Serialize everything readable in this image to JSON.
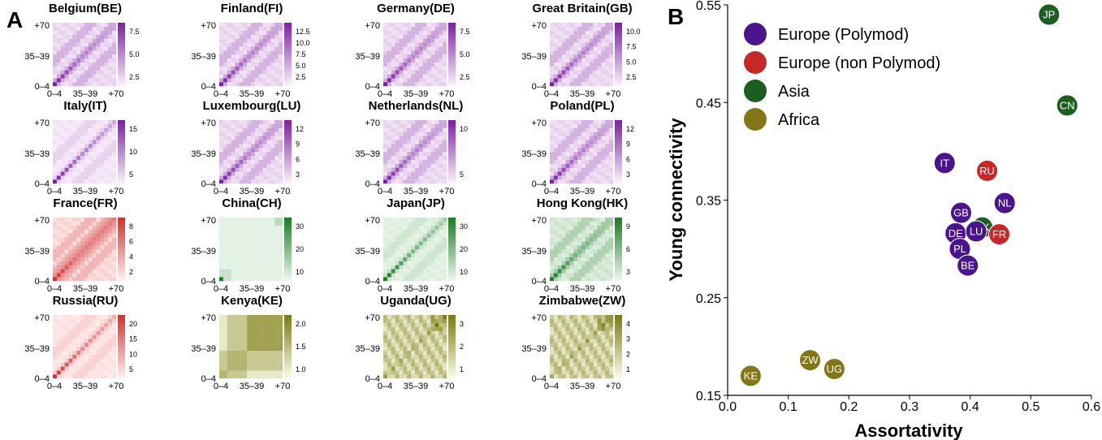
{
  "panels": {
    "a_label": "A",
    "b_label": "B"
  },
  "colors": {
    "Europe (Polymod)": "#4a148c",
    "Europe (non Polymod)": "#c62828",
    "Asia": "#1b5e20",
    "Africa": "#827717"
  },
  "chart_data": [
    {
      "type": "heatmap",
      "description_of": "contact matrices per country",
      "tick_labels": [
        "0–4",
        "35–39",
        "+70"
      ],
      "matrices": [
        {
          "name": "Belgium(BE)",
          "group": "Europe (Polymod)",
          "colorbar_ticks": [
            "7.5",
            "5.0",
            "2.5"
          ]
        },
        {
          "name": "Finland(FI)",
          "group": "Europe (Polymod)",
          "colorbar_ticks": [
            "12.5",
            "10.0",
            "7.5",
            "5.0",
            "2.5"
          ]
        },
        {
          "name": "Germany(DE)",
          "group": "Europe (Polymod)",
          "colorbar_ticks": [
            "7.5",
            "5.0",
            "2.5"
          ]
        },
        {
          "name": "Great Britain(GB)",
          "group": "Europe (Polymod)",
          "colorbar_ticks": [
            "10.0",
            "7.5",
            "5.0",
            "2.5"
          ]
        },
        {
          "name": "Italy(IT)",
          "group": "Europe (Polymod)",
          "colorbar_ticks": [
            "15",
            "10",
            "5"
          ]
        },
        {
          "name": "Luxembourg(LU)",
          "group": "Europe (Polymod)",
          "colorbar_ticks": [
            "12",
            "9",
            "6",
            "3"
          ]
        },
        {
          "name": "Netherlands(NL)",
          "group": "Europe (Polymod)",
          "colorbar_ticks": [
            "10",
            "5"
          ]
        },
        {
          "name": "Poland(PL)",
          "group": "Europe (Polymod)",
          "colorbar_ticks": [
            "12",
            "9",
            "6",
            "3"
          ]
        },
        {
          "name": "France(FR)",
          "group": "Europe (non Polymod)",
          "colorbar_ticks": [
            "8",
            "6",
            "4",
            "2"
          ]
        },
        {
          "name": "China(CH)",
          "group": "Asia",
          "colorbar_ticks": [
            "30",
            "20",
            "10"
          ]
        },
        {
          "name": "Japan(JP)",
          "group": "Asia",
          "colorbar_ticks": [
            "30",
            "20",
            "10"
          ]
        },
        {
          "name": "Hong Kong(HK)",
          "group": "Asia",
          "colorbar_ticks": [
            "9",
            "6",
            "3"
          ]
        },
        {
          "name": "Russia(RU)",
          "group": "Europe (non Polymod)",
          "colorbar_ticks": [
            "20",
            "15",
            "10",
            "5"
          ]
        },
        {
          "name": "Kenya(KE)",
          "group": "Africa",
          "colorbar_ticks": [
            "2.0",
            "1.5",
            "1.0"
          ]
        },
        {
          "name": "Uganda(UG)",
          "group": "Africa",
          "colorbar_ticks": [
            "3",
            "2",
            "1"
          ]
        },
        {
          "name": "Zimbabwe(ZW)",
          "group": "Africa",
          "colorbar_ticks": [
            "4",
            "3",
            "2",
            "1"
          ]
        }
      ]
    },
    {
      "type": "scatter",
      "xlabel": "Assortativity",
      "ylabel": "Young connectivity",
      "xlim": [
        0.0,
        0.6
      ],
      "ylim": [
        0.15,
        0.55
      ],
      "xticks": [
        "0.0",
        "0.1",
        "0.2",
        "0.3",
        "0.4",
        "0.5",
        "0.6"
      ],
      "yticks": [
        "0.15",
        "0.25",
        "0.35",
        "0.45",
        "0.55"
      ],
      "grid": false,
      "legend_position": "top-left",
      "legend": [
        "Europe (Polymod)",
        "Europe (non Polymod)",
        "Asia",
        "Africa"
      ],
      "points": [
        {
          "label": "JP",
          "x": 0.53,
          "y": 0.54,
          "group": "Asia"
        },
        {
          "label": "CN",
          "x": 0.56,
          "y": 0.447,
          "group": "Asia"
        },
        {
          "label": "IT",
          "x": 0.358,
          "y": 0.388,
          "group": "Europe (Polymod)"
        },
        {
          "label": "RU",
          "x": 0.428,
          "y": 0.38,
          "group": "Europe (non Polymod)"
        },
        {
          "label": "NL",
          "x": 0.457,
          "y": 0.347,
          "group": "Europe (Polymod)"
        },
        {
          "label": "GB",
          "x": 0.385,
          "y": 0.337,
          "group": "Europe (Polymod)"
        },
        {
          "label": "HK",
          "x": 0.42,
          "y": 0.322,
          "group": "Asia"
        },
        {
          "label": "FR",
          "x": 0.448,
          "y": 0.315,
          "group": "Europe (non Polymod)"
        },
        {
          "label": "DE",
          "x": 0.376,
          "y": 0.316,
          "group": "Europe (Polymod)"
        },
        {
          "label": "LU",
          "x": 0.41,
          "y": 0.318,
          "group": "Europe (Polymod)"
        },
        {
          "label": "PL",
          "x": 0.383,
          "y": 0.3,
          "group": "Europe (Polymod)"
        },
        {
          "label": "BE",
          "x": 0.396,
          "y": 0.283,
          "group": "Europe (Polymod)"
        },
        {
          "label": "ZW",
          "x": 0.136,
          "y": 0.186,
          "group": "Africa"
        },
        {
          "label": "UG",
          "x": 0.176,
          "y": 0.177,
          "group": "Africa"
        },
        {
          "label": "KE",
          "x": 0.038,
          "y": 0.17,
          "group": "Africa"
        }
      ]
    }
  ]
}
